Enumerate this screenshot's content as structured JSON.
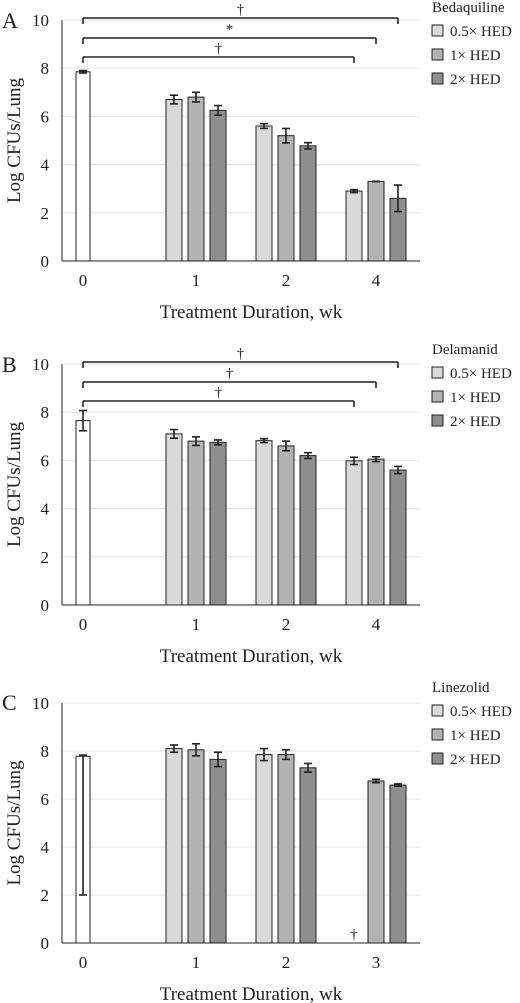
{
  "colors": {
    "baseline": "#ffffff",
    "dose_0_5": "#d9d9d9",
    "dose_1": "#b3b3b3",
    "dose_2": "#8f8f8f",
    "grid": "#e6e6e6",
    "axis": "#222222"
  },
  "chart_data": [
    {
      "type": "bar",
      "panel": "A",
      "legend_title": "Bedaquiline",
      "legend_position": "top-right",
      "ylabel": "Log CFUs/Lung",
      "xlabel": "Treatment Duration, wk",
      "ylim": [
        0,
        10
      ],
      "yticks": [
        0,
        2,
        4,
        6,
        8,
        10
      ],
      "grid": true,
      "categories": [
        "0",
        "1",
        "2",
        "4"
      ],
      "baseline": {
        "value": 7.85,
        "error": 0.05
      },
      "series": [
        {
          "name": "0.5× HED",
          "values": [
            null,
            6.7,
            5.6,
            2.9
          ],
          "errors": [
            null,
            0.18,
            0.1,
            0.06
          ]
        },
        {
          "name": "1× HED",
          "values": [
            null,
            6.8,
            5.2,
            3.3
          ],
          "errors": [
            null,
            0.2,
            0.3,
            0.0
          ]
        },
        {
          "name": "2× HED",
          "values": [
            null,
            6.25,
            4.78,
            2.6
          ],
          "errors": [
            null,
            0.2,
            0.13,
            0.55
          ]
        }
      ],
      "significance": [
        {
          "label": "†",
          "to_category": "4",
          "to_series": 0
        },
        {
          "label": "*",
          "to_category": "4",
          "to_series": 1
        },
        {
          "label": "†",
          "to_category": "4",
          "to_series": 2
        }
      ]
    },
    {
      "type": "bar",
      "panel": "B",
      "legend_title": "Delamanid",
      "legend_position": "top-right",
      "ylabel": "Log CFUs/Lung",
      "xlabel": "Treatment Duration, wk",
      "ylim": [
        0,
        10
      ],
      "yticks": [
        0,
        2,
        4,
        6,
        8,
        10
      ],
      "grid": true,
      "categories": [
        "0",
        "1",
        "2",
        "4"
      ],
      "baseline": {
        "value": 7.65,
        "error": 0.42
      },
      "series": [
        {
          "name": "0.5× HED",
          "values": [
            null,
            7.1,
            6.82,
            5.98
          ],
          "errors": [
            null,
            0.18,
            0.08,
            0.15
          ]
        },
        {
          "name": "1× HED",
          "values": [
            null,
            6.8,
            6.6,
            6.05
          ],
          "errors": [
            null,
            0.18,
            0.2,
            0.1
          ]
        },
        {
          "name": "2× HED",
          "values": [
            null,
            6.75,
            6.2,
            5.6
          ],
          "errors": [
            null,
            0.1,
            0.12,
            0.15
          ]
        }
      ],
      "significance": [
        {
          "label": "†",
          "to_category": "4",
          "to_series": 0
        },
        {
          "label": "†",
          "to_category": "4",
          "to_series": 1
        },
        {
          "label": "†",
          "to_category": "4",
          "to_series": 2
        }
      ]
    },
    {
      "type": "bar",
      "panel": "C",
      "legend_title": "Linezolid",
      "legend_position": "top-right",
      "ylabel": "Log CFUs/Lung",
      "xlabel": "Treatment Duration, wk",
      "ylim": [
        0,
        10
      ],
      "yticks": [
        0,
        2,
        4,
        6,
        8,
        10
      ],
      "grid": true,
      "categories": [
        "0",
        "1",
        "2",
        "3"
      ],
      "baseline": {
        "value": 7.78,
        "error": 0.05,
        "error_low": 2.0
      },
      "series": [
        {
          "name": "0.5× HED",
          "values": [
            null,
            8.1,
            7.85,
            null
          ],
          "errors": [
            null,
            0.15,
            0.25,
            null
          ]
        },
        {
          "name": "1× HED",
          "values": [
            null,
            8.05,
            7.85,
            6.75
          ],
          "errors": [
            null,
            0.25,
            0.2,
            0.07
          ]
        },
        {
          "name": "2× HED",
          "values": [
            null,
            7.65,
            7.3,
            6.58
          ],
          "errors": [
            null,
            0.3,
            0.18,
            0.05
          ]
        }
      ],
      "annotations": [
        {
          "label": "†",
          "category": "3",
          "series": 0
        }
      ]
    }
  ]
}
